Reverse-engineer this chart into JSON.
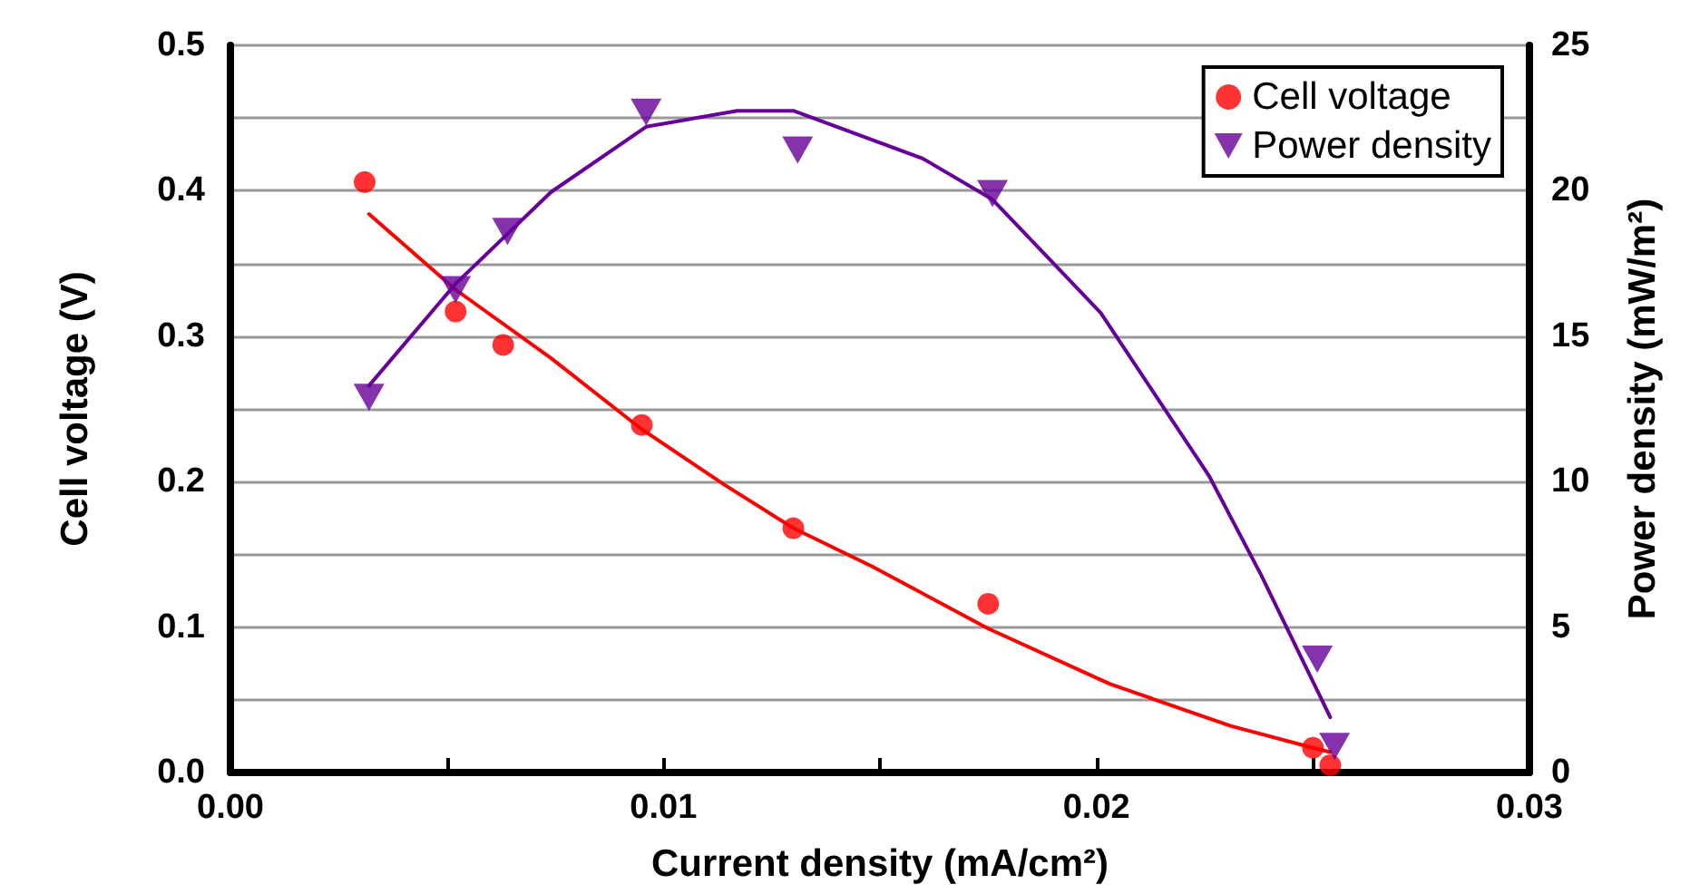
{
  "chart_data": {
    "type": "scatter",
    "xlabel": "Current density (mA/cm²)",
    "ylabel": "Cell voltage (V)",
    "y2label": "Power density (mW/m²)",
    "series": [
      {
        "name": "Cell voltage",
        "color": "#ff0000",
        "marker": "circle",
        "x": [
          0.0031,
          0.0052,
          0.0063,
          0.0095,
          0.013,
          0.0175,
          0.025,
          0.0254
        ],
        "values": [
          0.406,
          0.317,
          0.294,
          0.239,
          0.168,
          0.116,
          0.017,
          0.005
        ]
      },
      {
        "name": "Power density",
        "axis": "y2",
        "color": "#660099",
        "marker": "triangle",
        "x": [
          0.0032,
          0.0052,
          0.0064,
          0.0096,
          0.0131,
          0.0176,
          0.0251,
          0.0255
        ],
        "values": [
          12.9,
          16.6,
          18.6,
          22.7,
          21.4,
          19.9,
          3.9,
          0.9
        ]
      },
      {
        "type": "line",
        "color": "#ff0000",
        "marker": "none",
        "x": [
          0.0032,
          0.0052,
          0.0074,
          0.0095,
          0.0114,
          0.013,
          0.0148,
          0.0175,
          0.0203,
          0.0231,
          0.025,
          0.0254
        ],
        "values": [
          0.384,
          0.332,
          0.285,
          0.236,
          0.198,
          0.168,
          0.142,
          0.099,
          0.061,
          0.032,
          0.017,
          0.014
        ]
      },
      {
        "type": "line",
        "axis": "y2",
        "color": "#660099",
        "marker": "none",
        "x": [
          0.0032,
          0.0052,
          0.0074,
          0.0096,
          0.0117,
          0.013,
          0.016,
          0.0176,
          0.0201,
          0.0226,
          0.0238,
          0.0254
        ],
        "values": [
          13.3,
          16.8,
          19.95,
          22.2,
          22.75,
          22.75,
          21.1,
          19.7,
          15.8,
          10.2,
          6.8,
          1.9
        ]
      }
    ],
    "xlim": [
      0,
      0.03
    ],
    "xticks": [
      {
        "value": 0,
        "label": "0.00"
      },
      {
        "value": 0.005,
        "label": null
      },
      {
        "value": 0.01,
        "label": "0.01"
      },
      {
        "value": 0.015,
        "label": null
      },
      {
        "value": 0.02,
        "label": "0.02"
      },
      {
        "value": 0.025,
        "label": null
      },
      {
        "value": 0.03,
        "label": "0.03"
      }
    ],
    "ylim": [
      0,
      0.5
    ],
    "yticks": [
      {
        "value": 0,
        "label": "0.0"
      },
      {
        "value": 0.05,
        "label": null
      },
      {
        "value": 0.1,
        "label": "0.1"
      },
      {
        "value": 0.15,
        "label": null
      },
      {
        "value": 0.2,
        "label": "0.2"
      },
      {
        "value": 0.25,
        "label": null
      },
      {
        "value": 0.3,
        "label": "0.3"
      },
      {
        "value": 0.35,
        "label": null
      },
      {
        "value": 0.4,
        "label": "0.4"
      },
      {
        "value": 0.45,
        "label": null
      },
      {
        "value": 0.5,
        "label": "0.5"
      }
    ],
    "y2lim": [
      0,
      25
    ],
    "y2ticks": [
      0,
      5,
      10,
      15,
      20,
      25
    ],
    "grid": "y",
    "legend": "top right",
    "line_style": "solid"
  }
}
